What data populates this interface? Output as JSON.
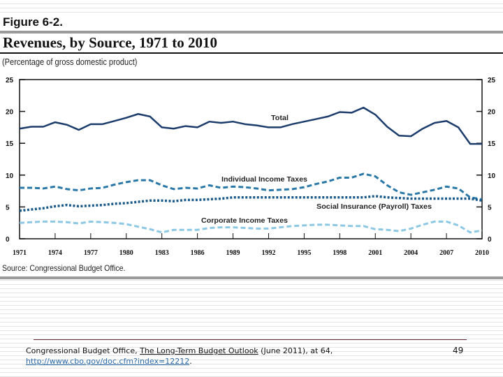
{
  "figure": {
    "label": "Figure 6-2.",
    "title": "Revenues, by Source, 1971 to 2010",
    "subtitle": "(Percentage of gross domestic product)",
    "source": "Source:   Congressional Budget Office."
  },
  "chart_data": {
    "type": "line",
    "title": "Revenues, by Source, 1971 to 2010",
    "ylabel": "(Percentage of gross domestic product)",
    "xlim": [
      1971,
      2010
    ],
    "ylim": [
      0,
      25
    ],
    "x_ticks": [
      "1971",
      "1974",
      "1977",
      "1980",
      "1983",
      "1986",
      "1989",
      "1992",
      "1995",
      "1998",
      "2001",
      "2004",
      "2007",
      "2010"
    ],
    "y_ticks": [
      "0",
      "5",
      "10",
      "15",
      "20",
      "25"
    ],
    "grid": false,
    "x": [
      1971,
      1972,
      1973,
      1974,
      1975,
      1976,
      1977,
      1978,
      1979,
      1980,
      1981,
      1982,
      1983,
      1984,
      1985,
      1986,
      1987,
      1988,
      1989,
      1990,
      1991,
      1992,
      1993,
      1994,
      1995,
      1996,
      1997,
      1998,
      1999,
      2000,
      2001,
      2002,
      2003,
      2004,
      2005,
      2006,
      2007,
      2008,
      2009,
      2010
    ],
    "series": [
      {
        "name": "Total",
        "color": "#1c3c6c",
        "style": "solid",
        "values": [
          17.3,
          17.6,
          17.6,
          18.3,
          17.9,
          17.1,
          18.0,
          18.0,
          18.5,
          19.0,
          19.6,
          19.2,
          17.5,
          17.3,
          17.7,
          17.5,
          18.4,
          18.2,
          18.4,
          18.0,
          17.8,
          17.5,
          17.5,
          18.0,
          18.4,
          18.8,
          19.2,
          19.9,
          19.8,
          20.6,
          19.5,
          17.6,
          16.2,
          16.1,
          17.3,
          18.2,
          18.5,
          17.5,
          14.9,
          14.9
        ]
      },
      {
        "name": "Individual Income Taxes",
        "color": "#2a78a8",
        "style": "dashed",
        "values": [
          8.0,
          8.0,
          7.9,
          8.2,
          7.8,
          7.6,
          7.9,
          8.0,
          8.5,
          8.9,
          9.2,
          9.2,
          8.4,
          7.8,
          8.0,
          7.9,
          8.4,
          8.0,
          8.2,
          8.1,
          7.9,
          7.6,
          7.7,
          7.8,
          8.1,
          8.6,
          9.0,
          9.6,
          9.6,
          10.2,
          9.8,
          8.4,
          7.3,
          6.9,
          7.3,
          7.7,
          8.2,
          7.9,
          6.5,
          6.2
        ]
      },
      {
        "name": "Social Insurance (Payroll) Taxes",
        "color": "#1a5a8a",
        "style": "dotted",
        "values": [
          4.4,
          4.6,
          4.8,
          5.1,
          5.3,
          5.1,
          5.2,
          5.3,
          5.5,
          5.6,
          5.8,
          6.0,
          6.0,
          5.9,
          6.1,
          6.1,
          6.2,
          6.3,
          6.5,
          6.5,
          6.5,
          6.5,
          6.5,
          6.5,
          6.5,
          6.5,
          6.5,
          6.5,
          6.5,
          6.5,
          6.7,
          6.5,
          6.4,
          6.3,
          6.3,
          6.3,
          6.3,
          6.3,
          6.3,
          6.0
        ]
      },
      {
        "name": "Corporate Income Taxes",
        "color": "#8cc8e4",
        "style": "dashed",
        "values": [
          2.5,
          2.6,
          2.7,
          2.7,
          2.6,
          2.4,
          2.7,
          2.6,
          2.5,
          2.3,
          1.9,
          1.5,
          1.0,
          1.4,
          1.4,
          1.4,
          1.7,
          1.8,
          1.8,
          1.7,
          1.6,
          1.6,
          1.8,
          2.0,
          2.1,
          2.2,
          2.2,
          2.1,
          2.0,
          2.0,
          1.5,
          1.4,
          1.2,
          1.6,
          2.2,
          2.7,
          2.7,
          2.1,
          1.0,
          1.3
        ]
      }
    ]
  },
  "footer": {
    "citation_prefix": "Congressional Budget Office, ",
    "citation_title": "The Long-Term Budget Outlook",
    "citation_suffix": " (June 2011), at 64,",
    "url": "http://www.cbo.gov/doc.cfm?index=12212",
    "url_suffix": ".",
    "page_number": "49"
  }
}
